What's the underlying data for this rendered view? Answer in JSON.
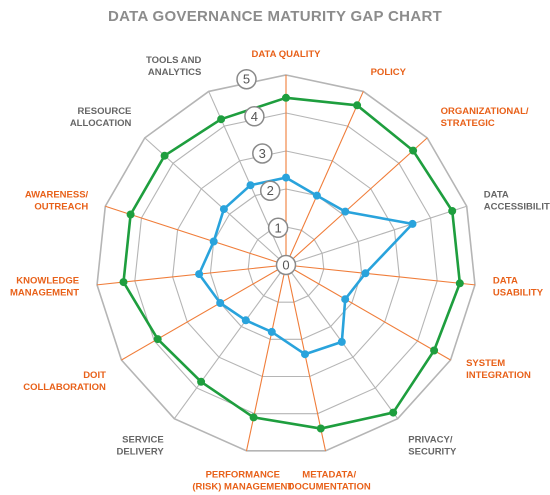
{
  "chart_data": {
    "type": "radar",
    "title": "DATA GOVERNANCE MATURITY GAP CHART",
    "scale": {
      "min": 0,
      "max": 5,
      "ticks": [
        "0",
        "1",
        "2",
        "3",
        "4",
        "5"
      ]
    },
    "axes": [
      {
        "label": "DATA QUALITY",
        "lines": [
          "DATA QUALITY"
        ],
        "highlight": true
      },
      {
        "label": "POLICY",
        "lines": [
          "POLICY"
        ],
        "highlight": true
      },
      {
        "label": "ORGANIZATIONAL/ STRATEGIC",
        "lines": [
          "ORGANIZATIONAL/",
          "STRATEGIC"
        ],
        "highlight": true
      },
      {
        "label": "DATA ACCESSIBILITY",
        "lines": [
          "DATA",
          "ACCESSIBILITY"
        ],
        "highlight": false
      },
      {
        "label": "DATA USABILITY",
        "lines": [
          "DATA",
          "USABILITY"
        ],
        "highlight": true
      },
      {
        "label": "SYSTEM INTEGRATION",
        "lines": [
          "SYSTEM",
          "INTEGRATION"
        ],
        "highlight": true
      },
      {
        "label": "PRIVACY/ SECURITY",
        "lines": [
          "PRIVACY/",
          "SECURITY"
        ],
        "highlight": false
      },
      {
        "label": "METADATA/ DOCUMENTATION",
        "lines": [
          "METADATA/",
          "DOCUMENTATION"
        ],
        "highlight": true
      },
      {
        "label": "PERFORMANCE (RISK) MANAGEMENT",
        "lines": [
          "PERFORMANCE",
          "(RISK) MANAGEMENT"
        ],
        "highlight": true
      },
      {
        "label": "SERVICE DELIVERY",
        "lines": [
          "SERVICE",
          "DELIVERY"
        ],
        "highlight": false
      },
      {
        "label": "DoIT COLLABORATION",
        "lines": [
          "DoIT",
          "COLLABORATION"
        ],
        "highlight": true
      },
      {
        "label": "KNOWLEDGE MANAGEMENT",
        "lines": [
          "KNOWLEDGE",
          "MANAGEMENT"
        ],
        "highlight": true
      },
      {
        "label": "AWARENESS/ OUTREACH",
        "lines": [
          "AWARENESS/",
          "OUTREACH"
        ],
        "highlight": true
      },
      {
        "label": "RESOURCE ALLOCATION",
        "lines": [
          "RESOURCE",
          "ALLOCATION"
        ],
        "highlight": false
      },
      {
        "label": "TOOLS AND ANALYTICS",
        "lines": [
          "TOOLS AND",
          "ANALYTICS"
        ],
        "highlight": false
      }
    ],
    "series": [
      {
        "values": [
          4.4,
          4.6,
          4.5,
          4.6,
          4.6,
          4.5,
          4.8,
          4.4,
          4.1,
          3.8,
          3.9,
          4.3,
          4.3,
          4.3,
          4.2
        ]
      },
      {
        "values": [
          2.3,
          2.0,
          2.1,
          3.5,
          2.1,
          1.8,
          2.5,
          2.4,
          1.8,
          1.8,
          2.0,
          2.3,
          2.0,
          2.2,
          2.3
        ]
      }
    ],
    "colors": {
      "target": "#1e9e3e",
      "current": "#29a3dc",
      "grid": "#b5b5b5",
      "highlight_axis": "#f07d3a",
      "plain_axis": "#b5b5b5",
      "highlight_label": "#e8611a",
      "plain_label": "#666666",
      "title": "#8c8c8c"
    }
  }
}
